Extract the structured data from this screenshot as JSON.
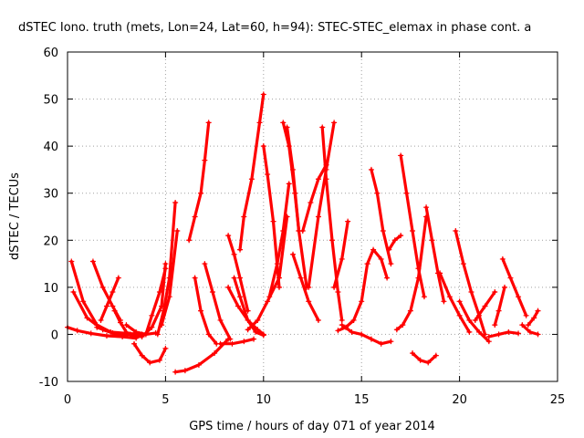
{
  "chart_data": {
    "type": "scatter",
    "title": "dSTEC Iono. truth (mets, Lon=24, Lat=60, h=94): STEC-STEC_elemax in phase cont. a",
    "xlabel": "GPS time / hours of day 071 of year 2014",
    "ylabel": "dSTEC  / TECUs",
    "xlim": [
      0,
      25
    ],
    "ylim": [
      -10,
      60
    ],
    "xticks": [
      0,
      5,
      10,
      15,
      20,
      25
    ],
    "yticks": [
      -10,
      0,
      10,
      20,
      30,
      40,
      50,
      60
    ],
    "grid": true,
    "marker": "+",
    "color": "#ff0000",
    "series": [
      {
        "x": [
          0.2,
          0.8,
          1.5,
          2.3,
          3.0
        ],
        "y": [
          15.5,
          7,
          2,
          0.3,
          0
        ]
      },
      {
        "x": [
          0.3,
          1.0,
          1.8,
          2.5,
          3.2
        ],
        "y": [
          9,
          3.5,
          1,
          0,
          0
        ]
      },
      {
        "x": [
          0.0,
          0.5,
          1.2,
          2.0,
          2.8,
          3.5
        ],
        "y": [
          1.5,
          0.8,
          0.2,
          -0.3,
          -0.5,
          -0.8
        ]
      },
      {
        "x": [
          1.3,
          1.8,
          2.3,
          2.7
        ],
        "y": [
          15.5,
          10,
          6,
          3
        ]
      },
      {
        "x": [
          1.5,
          2.2,
          3.0,
          3.8
        ],
        "y": [
          1.5,
          0.5,
          0.2,
          0
        ]
      },
      {
        "x": [
          1.7,
          2.0,
          2.3,
          2.6
        ],
        "y": [
          3,
          6,
          9,
          12
        ]
      },
      {
        "x": [
          2.4,
          2.7,
          3.0
        ],
        "y": [
          5,
          2.5,
          0.5
        ]
      },
      {
        "x": [
          3.0,
          3.5,
          4.0,
          4.5
        ],
        "y": [
          2,
          0.5,
          0,
          0.3
        ]
      },
      {
        "x": [
          3.3,
          3.8,
          4.3,
          4.8,
          5.0
        ],
        "y": [
          -0.3,
          -0.5,
          1.5,
          6,
          15
        ]
      },
      {
        "x": [
          3.4,
          3.8,
          4.2,
          4.7,
          5.0
        ],
        "y": [
          -2,
          -4.5,
          -6,
          -5.5,
          -3
        ]
      },
      {
        "x": [
          4.0,
          4.3,
          4.7,
          5.0
        ],
        "y": [
          0,
          4,
          9,
          14
        ]
      },
      {
        "x": [
          4.6,
          4.9,
          5.2,
          5.5
        ],
        "y": [
          0,
          5,
          12,
          28
        ]
      },
      {
        "x": [
          4.8,
          5.2,
          5.6
        ],
        "y": [
          2,
          8,
          22
        ]
      },
      {
        "x": [
          5.5,
          6.0,
          6.7,
          7.5,
          8.2
        ],
        "y": [
          -8,
          -7.7,
          -6.5,
          -4,
          -1
        ]
      },
      {
        "x": [
          6.2,
          6.5,
          6.8,
          7.0,
          7.2
        ],
        "y": [
          20,
          25,
          30,
          37,
          45
        ]
      },
      {
        "x": [
          6.5,
          6.8,
          7.2,
          7.6
        ],
        "y": [
          12,
          5,
          0,
          -2
        ]
      },
      {
        "x": [
          7.0,
          7.4,
          7.8,
          8.3
        ],
        "y": [
          15,
          9,
          3,
          -1
        ]
      },
      {
        "x": [
          7.8,
          8.4,
          9.0,
          9.5
        ],
        "y": [
          -2,
          -2,
          -1.5,
          -1
        ]
      },
      {
        "x": [
          8.2,
          8.7,
          9.2,
          9.7,
          10.0
        ],
        "y": [
          10,
          6,
          3,
          1,
          0
        ]
      },
      {
        "x": [
          8.2,
          8.5,
          8.8,
          9.2
        ],
        "y": [
          21,
          17,
          12,
          5
        ]
      },
      {
        "x": [
          8.5,
          8.8,
          9.2,
          9.6,
          10.0
        ],
        "y": [
          12,
          8,
          3,
          0.5,
          -0.2
        ]
      },
      {
        "x": [
          8.8,
          9.0,
          9.4,
          9.8,
          10.0
        ],
        "y": [
          18,
          25,
          33,
          45,
          51
        ]
      },
      {
        "x": [
          9.2,
          9.7,
          10.2,
          10.8,
          11.2
        ],
        "y": [
          1,
          3,
          7,
          12,
          25
        ]
      },
      {
        "x": [
          10.0,
          10.2,
          10.5,
          10.8
        ],
        "y": [
          40,
          34,
          24,
          10
        ]
      },
      {
        "x": [
          10.3,
          10.7,
          11.0,
          11.3
        ],
        "y": [
          8,
          15,
          22,
          32
        ]
      },
      {
        "x": [
          11.0,
          11.3,
          11.6,
          11.8
        ],
        "y": [
          45,
          40,
          30,
          22
        ]
      },
      {
        "x": [
          11.2,
          11.5,
          11.8,
          12.2
        ],
        "y": [
          44,
          35,
          22,
          10
        ]
      },
      {
        "x": [
          11.5,
          11.9,
          12.3,
          12.8
        ],
        "y": [
          17,
          12,
          7,
          3
        ]
      },
      {
        "x": [
          12.0,
          12.4,
          12.8,
          13.2
        ],
        "y": [
          22,
          28,
          33,
          36
        ]
      },
      {
        "x": [
          12.3,
          12.8,
          13.2,
          13.6
        ],
        "y": [
          10,
          25,
          35,
          45
        ]
      },
      {
        "x": [
          13.0,
          13.2,
          13.5,
          13.8,
          14.0
        ],
        "y": [
          44,
          33,
          20,
          9,
          3
        ]
      },
      {
        "x": [
          13.8,
          14.2,
          14.6,
          15.0,
          15.3
        ],
        "y": [
          0.8,
          1.5,
          3,
          7,
          15
        ]
      },
      {
        "x": [
          14.3,
          14.0,
          13.6
        ],
        "y": [
          24,
          16,
          10
        ]
      },
      {
        "x": [
          14.0,
          14.5,
          15.0,
          15.5,
          16.0,
          16.5
        ],
        "y": [
          2,
          0.5,
          0,
          -1,
          -2,
          -1.5
        ]
      },
      {
        "x": [
          15.3,
          15.6,
          16.0,
          16.3
        ],
        "y": [
          15,
          18,
          16,
          12
        ]
      },
      {
        "x": [
          15.5,
          15.8,
          16.1,
          16.5
        ],
        "y": [
          35,
          30,
          22,
          15
        ]
      },
      {
        "x": [
          16.4,
          16.7,
          17.0
        ],
        "y": [
          18,
          20,
          21
        ]
      },
      {
        "x": [
          16.8,
          17.1,
          17.5,
          17.9,
          18.3
        ],
        "y": [
          1,
          2,
          5,
          12,
          25
        ]
      },
      {
        "x": [
          17.0,
          17.3,
          17.6,
          17.9,
          18.2
        ],
        "y": [
          38,
          30,
          22,
          14,
          8
        ]
      },
      {
        "x": [
          17.6,
          18.0,
          18.4,
          18.8
        ],
        "y": [
          -4,
          -5.5,
          -6,
          -4.5
        ]
      },
      {
        "x": [
          18.3,
          18.6,
          18.9,
          19.2
        ],
        "y": [
          27,
          20,
          13,
          7
        ]
      },
      {
        "x": [
          19.0,
          19.5,
          20.0,
          20.5
        ],
        "y": [
          13,
          8,
          4,
          0.5
        ]
      },
      {
        "x": [
          19.8,
          20.2,
          20.6,
          21.0,
          21.3
        ],
        "y": [
          22,
          15,
          9,
          4,
          0
        ]
      },
      {
        "x": [
          20.0,
          20.5,
          21.0,
          21.5
        ],
        "y": [
          7,
          3,
          0.5,
          -1.5
        ]
      },
      {
        "x": [
          20.8,
          21.3,
          21.8
        ],
        "y": [
          3,
          6,
          9
        ]
      },
      {
        "x": [
          21.5,
          22.0,
          22.5,
          23.0
        ],
        "y": [
          -0.5,
          0,
          0.5,
          0.2
        ]
      },
      {
        "x": [
          21.8,
          22.0,
          22.3
        ],
        "y": [
          2,
          5,
          10
        ]
      },
      {
        "x": [
          22.2,
          22.6,
          23.0,
          23.4
        ],
        "y": [
          16,
          12,
          8,
          4
        ]
      },
      {
        "x": [
          23.2,
          23.6,
          24.0
        ],
        "y": [
          2,
          0.5,
          0
        ]
      },
      {
        "x": [
          23.5,
          23.8,
          24.0
        ],
        "y": [
          2,
          3.5,
          5
        ]
      }
    ]
  }
}
